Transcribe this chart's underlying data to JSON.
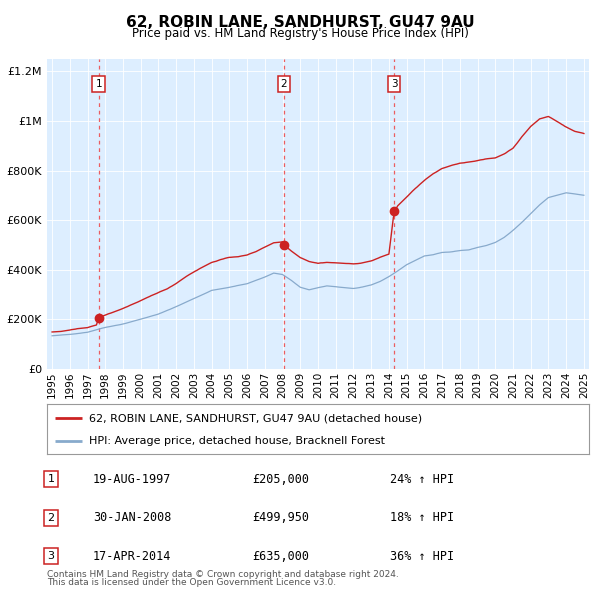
{
  "title": "62, ROBIN LANE, SANDHURST, GU47 9AU",
  "subtitle": "Price paid vs. HM Land Registry's House Price Index (HPI)",
  "sales": [
    {
      "date": 1997.63,
      "price": 205000,
      "label": "1",
      "date_str": "19-AUG-1997",
      "price_str": "£205,000",
      "hpi_str": "24% ↑ HPI"
    },
    {
      "date": 2008.08,
      "price": 499950,
      "label": "2",
      "date_str": "30-JAN-2008",
      "price_str": "£499,950",
      "hpi_str": "18% ↑ HPI"
    },
    {
      "date": 2014.29,
      "price": 635000,
      "label": "3",
      "date_str": "17-APR-2014",
      "price_str": "£635,000",
      "hpi_str": "36% ↑ HPI"
    }
  ],
  "hpi_label": "HPI: Average price, detached house, Bracknell Forest",
  "property_label": "62, ROBIN LANE, SANDHURST, GU47 9AU (detached house)",
  "footnote1": "Contains HM Land Registry data © Crown copyright and database right 2024.",
  "footnote2": "This data is licensed under the Open Government Licence v3.0.",
  "ylim": [
    0,
    1250000
  ],
  "xlim": [
    1994.7,
    2025.3
  ],
  "red_color": "#cc2222",
  "blue_color": "#88aacc",
  "bg_color": "#ddeeff",
  "grid_color": "#ffffff"
}
